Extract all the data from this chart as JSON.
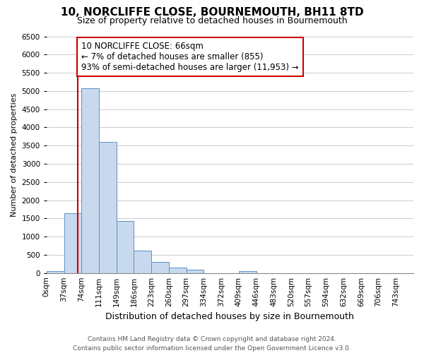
{
  "title": "10, NORCLIFFE CLOSE, BOURNEMOUTH, BH11 8TD",
  "subtitle": "Size of property relative to detached houses in Bournemouth",
  "xlabel": "Distribution of detached houses by size in Bournemouth",
  "ylabel": "Number of detached properties",
  "bar_color": "#c9d9ed",
  "bar_edge_color": "#5b8fc9",
  "bin_labels": [
    "0sqm",
    "37sqm",
    "74sqm",
    "111sqm",
    "149sqm",
    "186sqm",
    "223sqm",
    "260sqm",
    "297sqm",
    "334sqm",
    "372sqm",
    "409sqm",
    "446sqm",
    "483sqm",
    "520sqm",
    "557sqm",
    "594sqm",
    "632sqm",
    "669sqm",
    "706sqm",
    "743sqm"
  ],
  "bar_heights": [
    60,
    1650,
    5080,
    3600,
    1430,
    610,
    300,
    150,
    100,
    0,
    0,
    60,
    0,
    0,
    0,
    0,
    0,
    0,
    0,
    0,
    0
  ],
  "bin_width": 37,
  "property_line_x": 66,
  "property_line_color": "#cc0000",
  "annotation_line1": "10 NORCLIFFE CLOSE: 66sqm",
  "annotation_line2": "← 7% of detached houses are smaller (855)",
  "annotation_line3": "93% of semi-detached houses are larger (11,953) →",
  "annotation_box_color": "#cc0000",
  "annotation_box_fill": "#ffffff",
  "ylim": [
    0,
    6500
  ],
  "yticks": [
    0,
    500,
    1000,
    1500,
    2000,
    2500,
    3000,
    3500,
    4000,
    4500,
    5000,
    5500,
    6000,
    6500
  ],
  "grid_color": "#cccccc",
  "footnote": "Contains HM Land Registry data © Crown copyright and database right 2024.\nContains public sector information licensed under the Open Government Licence v3.0.",
  "title_fontsize": 11,
  "subtitle_fontsize": 9,
  "xlabel_fontsize": 9,
  "ylabel_fontsize": 8,
  "tick_fontsize": 7.5,
  "annotation_fontsize": 8.5,
  "footnote_fontsize": 6.5
}
